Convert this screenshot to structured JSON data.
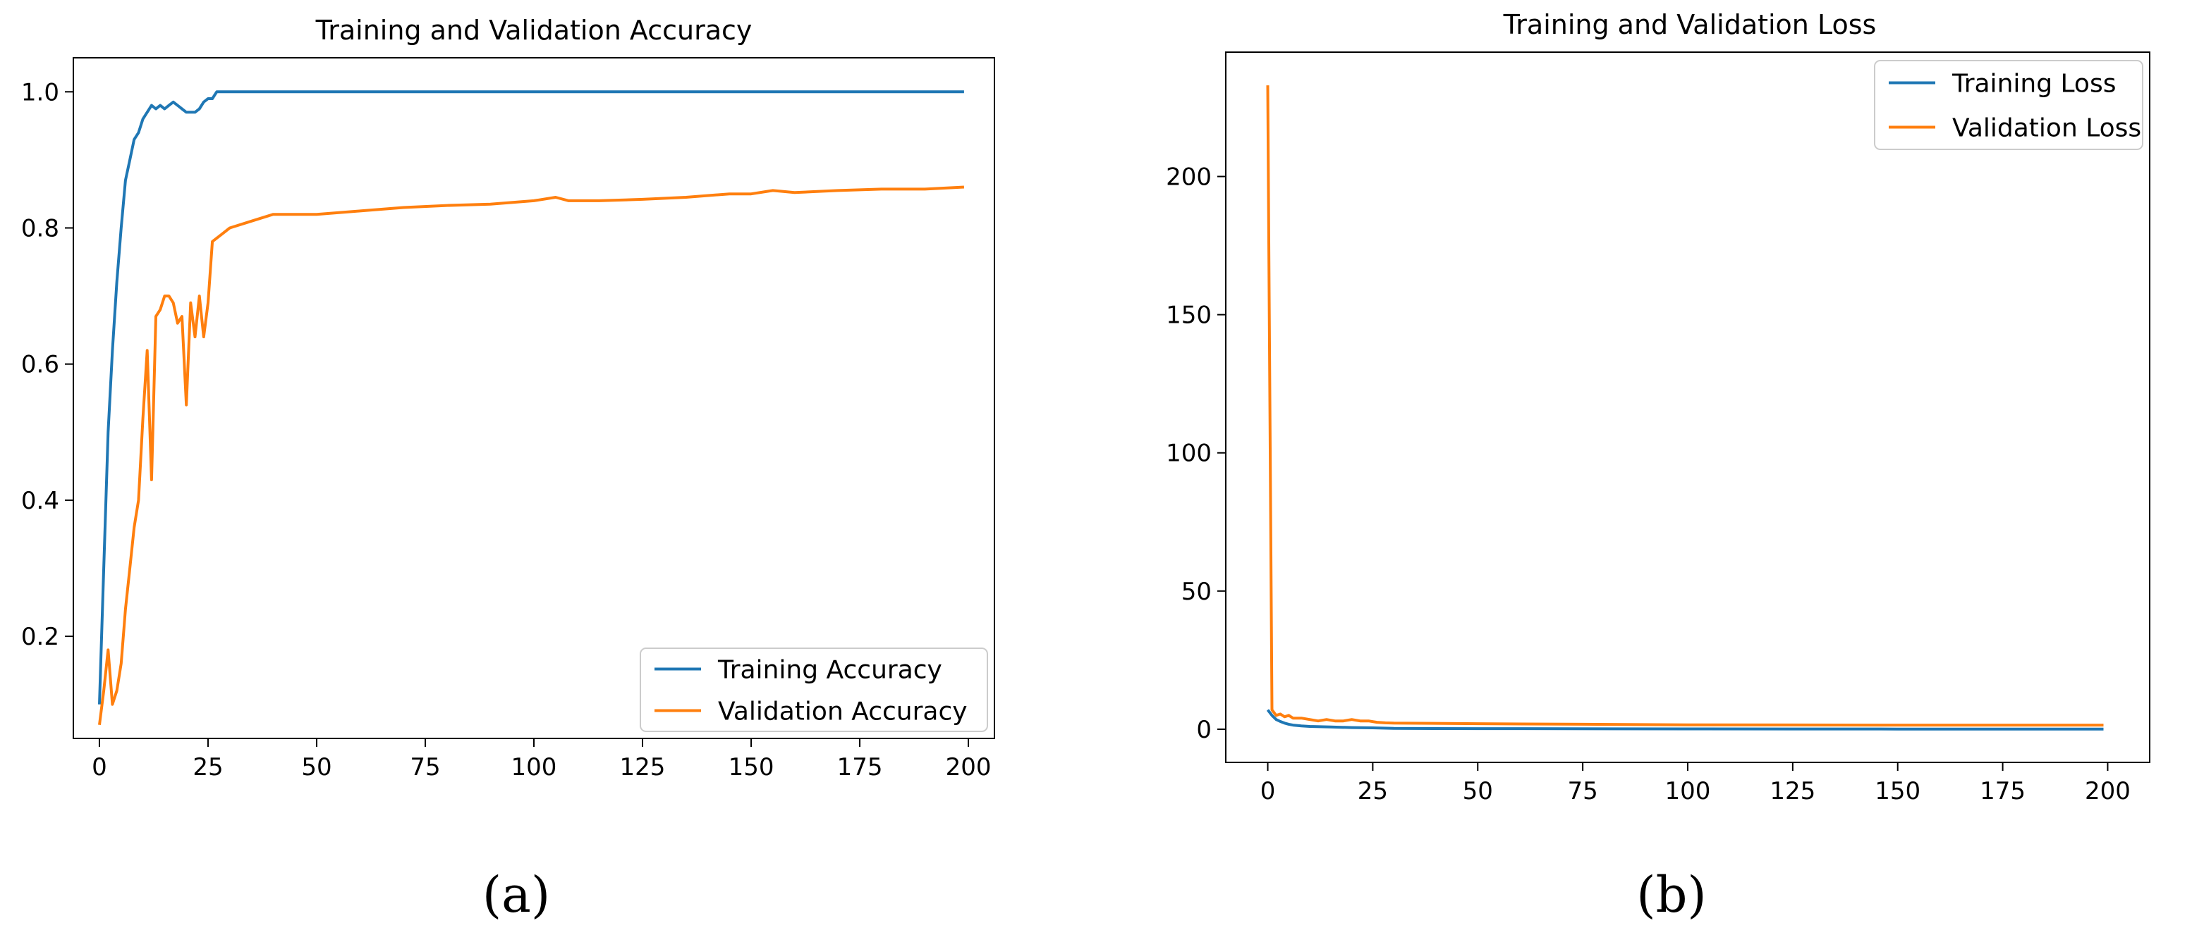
{
  "chart_data": [
    {
      "type": "line",
      "panel_label": "(a)",
      "title": "Training and Validation Accuracy",
      "xlabel": "",
      "ylabel": "",
      "xlim": [
        -6,
        206
      ],
      "ylim": [
        0.05,
        1.05
      ],
      "xticks": [
        0,
        25,
        50,
        75,
        100,
        125,
        150,
        175,
        200
      ],
      "yticks": [
        0.2,
        0.4,
        0.6,
        0.8,
        1.0
      ],
      "ytick_labels": [
        "0.2",
        "0.4",
        "0.6",
        "0.8",
        "1.0"
      ],
      "grid": false,
      "legend_position": "lower-right",
      "series": [
        {
          "name": "Training Accuracy",
          "color": "#1f77b4",
          "points": [
            [
              0,
              0.1
            ],
            [
              1,
              0.3
            ],
            [
              2,
              0.5
            ],
            [
              3,
              0.62
            ],
            [
              4,
              0.72
            ],
            [
              5,
              0.8
            ],
            [
              6,
              0.87
            ],
            [
              7,
              0.9
            ],
            [
              8,
              0.93
            ],
            [
              9,
              0.94
            ],
            [
              10,
              0.96
            ],
            [
              11,
              0.97
            ],
            [
              12,
              0.98
            ],
            [
              13,
              0.975
            ],
            [
              14,
              0.98
            ],
            [
              15,
              0.975
            ],
            [
              16,
              0.98
            ],
            [
              17,
              0.985
            ],
            [
              18,
              0.98
            ],
            [
              19,
              0.975
            ],
            [
              20,
              0.97
            ],
            [
              21,
              0.97
            ],
            [
              22,
              0.97
            ],
            [
              23,
              0.975
            ],
            [
              24,
              0.985
            ],
            [
              25,
              0.99
            ],
            [
              26,
              0.99
            ],
            [
              27,
              1.0
            ],
            [
              30,
              1.0
            ],
            [
              60,
              1.0
            ],
            [
              100,
              1.0
            ],
            [
              150,
              1.0
            ],
            [
              199,
              1.0
            ]
          ]
        },
        {
          "name": "Validation Accuracy",
          "color": "#ff7f0e",
          "points": [
            [
              0,
              0.07
            ],
            [
              1,
              0.12
            ],
            [
              2,
              0.18
            ],
            [
              3,
              0.1
            ],
            [
              4,
              0.12
            ],
            [
              5,
              0.16
            ],
            [
              6,
              0.24
            ],
            [
              7,
              0.3
            ],
            [
              8,
              0.36
            ],
            [
              9,
              0.4
            ],
            [
              10,
              0.52
            ],
            [
              11,
              0.62
            ],
            [
              12,
              0.43
            ],
            [
              13,
              0.67
            ],
            [
              14,
              0.68
            ],
            [
              15,
              0.7
            ],
            [
              16,
              0.7
            ],
            [
              17,
              0.69
            ],
            [
              18,
              0.66
            ],
            [
              19,
              0.67
            ],
            [
              20,
              0.54
            ],
            [
              21,
              0.69
            ],
            [
              22,
              0.64
            ],
            [
              23,
              0.7
            ],
            [
              24,
              0.64
            ],
            [
              25,
              0.69
            ],
            [
              26,
              0.78
            ],
            [
              28,
              0.79
            ],
            [
              30,
              0.8
            ],
            [
              35,
              0.81
            ],
            [
              40,
              0.82
            ],
            [
              50,
              0.82
            ],
            [
              60,
              0.825
            ],
            [
              70,
              0.83
            ],
            [
              80,
              0.833
            ],
            [
              90,
              0.835
            ],
            [
              100,
              0.84
            ],
            [
              105,
              0.845
            ],
            [
              108,
              0.84
            ],
            [
              115,
              0.84
            ],
            [
              125,
              0.842
            ],
            [
              135,
              0.845
            ],
            [
              145,
              0.85
            ],
            [
              150,
              0.85
            ],
            [
              155,
              0.855
            ],
            [
              160,
              0.852
            ],
            [
              170,
              0.855
            ],
            [
              180,
              0.857
            ],
            [
              190,
              0.857
            ],
            [
              199,
              0.86
            ]
          ]
        }
      ]
    },
    {
      "type": "line",
      "panel_label": "(b)",
      "title": "Training and Validation Loss",
      "xlabel": "",
      "ylabel": "",
      "xlim": [
        -10,
        210
      ],
      "ylim": [
        -12,
        245
      ],
      "xticks": [
        0,
        25,
        50,
        75,
        100,
        125,
        150,
        175,
        200
      ],
      "yticks": [
        0,
        50,
        100,
        150,
        200
      ],
      "ytick_labels": [
        "0",
        "50",
        "100",
        "150",
        "200"
      ],
      "grid": false,
      "legend_position": "top-right",
      "series": [
        {
          "name": "Training Loss",
          "color": "#1f77b4",
          "points": [
            [
              0,
              7
            ],
            [
              1,
              5
            ],
            [
              2,
              3.5
            ],
            [
              3,
              2.8
            ],
            [
              4,
              2.2
            ],
            [
              5,
              1.8
            ],
            [
              6,
              1.5
            ],
            [
              8,
              1.2
            ],
            [
              10,
              1.0
            ],
            [
              15,
              0.8
            ],
            [
              20,
              0.6
            ],
            [
              25,
              0.5
            ],
            [
              30,
              0.3
            ],
            [
              50,
              0.2
            ],
            [
              100,
              0.1
            ],
            [
              150,
              0.05
            ],
            [
              199,
              0.05
            ]
          ]
        },
        {
          "name": "Validation Loss",
          "color": "#ff7f0e",
          "points": [
            [
              0,
              233
            ],
            [
              1,
              7
            ],
            [
              2,
              5
            ],
            [
              3,
              5.5
            ],
            [
              4,
              4.5
            ],
            [
              5,
              5
            ],
            [
              6,
              4
            ],
            [
              8,
              4
            ],
            [
              10,
              3.5
            ],
            [
              12,
              3
            ],
            [
              14,
              3.5
            ],
            [
              16,
              3
            ],
            [
              18,
              3
            ],
            [
              20,
              3.5
            ],
            [
              22,
              3
            ],
            [
              24,
              3
            ],
            [
              26,
              2.5
            ],
            [
              28,
              2.3
            ],
            [
              30,
              2.2
            ],
            [
              50,
              2.0
            ],
            [
              75,
              1.8
            ],
            [
              100,
              1.6
            ],
            [
              150,
              1.5
            ],
            [
              199,
              1.5
            ]
          ]
        }
      ]
    }
  ]
}
